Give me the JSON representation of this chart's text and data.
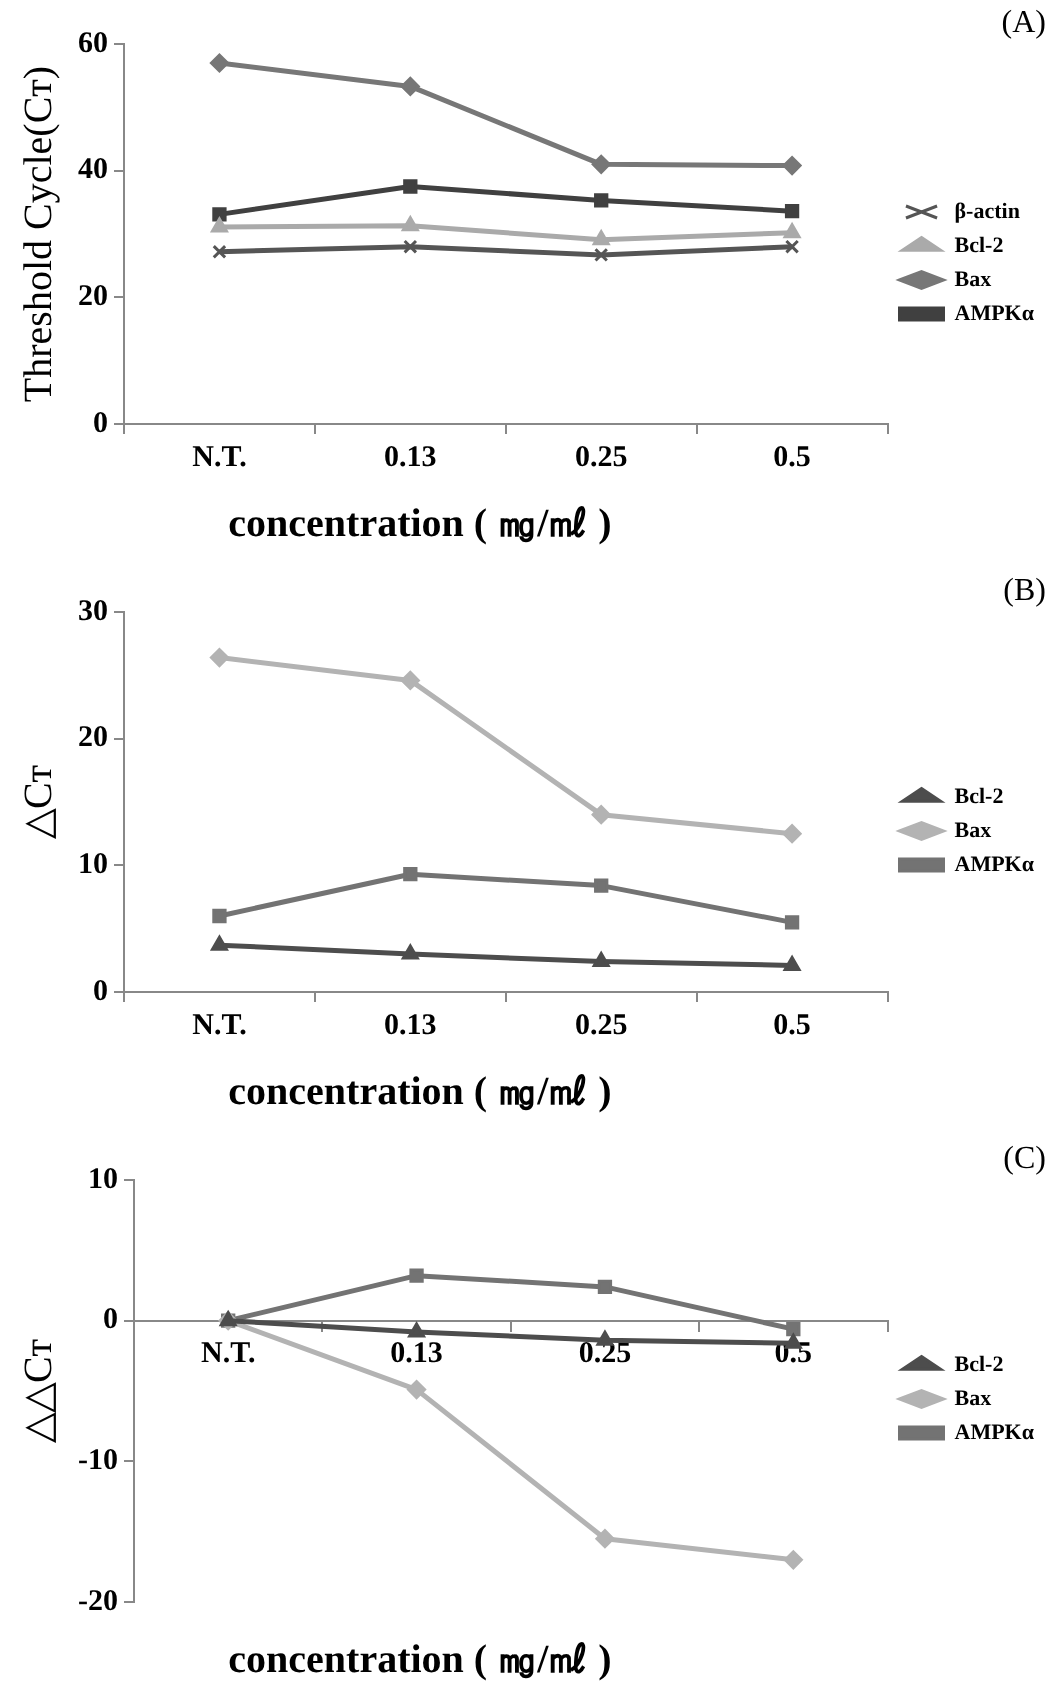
{
  "chart_data": [
    {
      "type": "line",
      "annotations": [
        "(A)"
      ],
      "xlabel": "concentration ( ㎎/㎖ )",
      "ylabel": "Threshold Cycle(Cᴛ)",
      "categories": [
        "N.T.",
        "0.13",
        "0.25",
        "0.5"
      ],
      "ylim": [
        0,
        60
      ],
      "yticks": [
        0,
        20,
        40,
        60
      ],
      "grid": false,
      "legend": "right",
      "series": [
        {
          "name": "β-actin",
          "color": "#555555",
          "marker": "cross",
          "values": [
            27.2,
            28.0,
            26.7,
            28.0
          ]
        },
        {
          "name": "Bcl-2",
          "color": "#aaaaaa",
          "marker": "triangle",
          "values": [
            31.1,
            31.3,
            29.1,
            30.2
          ]
        },
        {
          "name": "Bax",
          "color": "#777777",
          "marker": "diamond",
          "values": [
            57.0,
            53.3,
            41.0,
            40.8
          ]
        },
        {
          "name": "AMPKα",
          "color": "#404040",
          "marker": "square",
          "values": [
            33.1,
            37.5,
            35.3,
            33.6
          ]
        }
      ]
    },
    {
      "type": "line",
      "annotations": [
        "(B)"
      ],
      "xlabel": "concentration ( ㎎/㎖ )",
      "ylabel": "△Cᴛ",
      "categories": [
        "N.T.",
        "0.13",
        "0.25",
        "0.5"
      ],
      "ylim": [
        0,
        30
      ],
      "yticks": [
        0,
        10,
        20,
        30
      ],
      "grid": false,
      "legend": "right",
      "series": [
        {
          "name": "Bcl-2",
          "color": "#4d4d4d",
          "marker": "triangle",
          "values": [
            3.7,
            3.0,
            2.4,
            2.1
          ]
        },
        {
          "name": "Bax",
          "color": "#b3b3b3",
          "marker": "diamond",
          "values": [
            26.4,
            24.6,
            14.0,
            12.5
          ]
        },
        {
          "name": "AMPKα",
          "color": "#737373",
          "marker": "square",
          "values": [
            6.0,
            9.3,
            8.4,
            5.5
          ]
        }
      ]
    },
    {
      "type": "line",
      "annotations": [
        "(C)"
      ],
      "xlabel": "concentration ( ㎎/㎖ )",
      "ylabel": "△△Cᴛ",
      "categories": [
        "N.T.",
        "0.13",
        "0.25",
        "0.5"
      ],
      "ylim": [
        -20,
        10
      ],
      "yticks": [
        -20,
        -10,
        0,
        10
      ],
      "grid": false,
      "legend": "right",
      "series": [
        {
          "name": "Bcl-2",
          "color": "#4d4d4d",
          "marker": "triangle",
          "values": [
            0,
            -0.8,
            -1.4,
            -1.6
          ]
        },
        {
          "name": "Bax",
          "color": "#b3b3b3",
          "marker": "diamond",
          "values": [
            0,
            -4.9,
            -15.5,
            -17.0
          ]
        },
        {
          "name": "AMPKα",
          "color": "#737373",
          "marker": "square",
          "values": [
            0,
            3.2,
            2.4,
            -0.6
          ]
        }
      ]
    }
  ]
}
